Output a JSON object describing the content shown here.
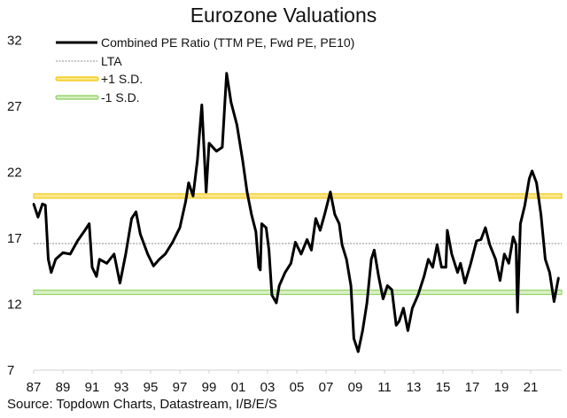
{
  "chart_data": {
    "type": "line",
    "title": "Eurozone Valuations",
    "source": "Source: Topdown Charts, Datastream, I/B/E/S",
    "xlabel": "",
    "ylabel": "",
    "xlim": [
      1987,
      2023
    ],
    "ylim": [
      7,
      32
    ],
    "y_ticks": [
      "32",
      "27",
      "22",
      "17",
      "12",
      "7"
    ],
    "y_tick_values": [
      32,
      27,
      22,
      17,
      12,
      7
    ],
    "x_ticks": [
      "87",
      "89",
      "91",
      "93",
      "95",
      "97",
      "99",
      "01",
      "03",
      "05",
      "07",
      "09",
      "11",
      "13",
      "15",
      "17",
      "19",
      "21"
    ],
    "grid": false,
    "legend_placement": "top-left",
    "legend": [
      "Combined PE Ratio (TTM PE, Fwd PE, PE10)",
      "LTA",
      "+1 S.D.",
      "-1 S.D."
    ],
    "colors": {
      "pe": "#000000",
      "lta": "#888888",
      "plus_sd": "#f2c500",
      "minus_sd": "#8ccf5a"
    },
    "series": [
      {
        "name": "Combined PE Ratio (TTM PE, Fwd PE, PE10)",
        "x": [
          1987.0,
          1987.3,
          1987.6,
          1987.8,
          1988.0,
          1988.2,
          1988.5,
          1989.0,
          1989.5,
          1990.0,
          1990.5,
          1990.8,
          1991.0,
          1991.3,
          1991.5,
          1992.0,
          1992.5,
          1992.9,
          1993.3,
          1993.7,
          1994.0,
          1994.3,
          1994.8,
          1995.2,
          1995.6,
          1996.0,
          1996.5,
          1997.0,
          1997.4,
          1997.6,
          1997.9,
          1998.2,
          1998.5,
          1998.8,
          1999.0,
          1999.5,
          1999.9,
          2000.1,
          2000.2,
          2000.5,
          2000.9,
          2001.3,
          2001.6,
          2001.9,
          2002.2,
          2002.4,
          2002.5,
          2002.6,
          2002.9,
          2003.1,
          2003.3,
          2003.6,
          2003.8,
          2004.2,
          2004.6,
          2004.9,
          2005.3,
          2005.7,
          2006.0,
          2006.3,
          2006.6,
          2006.9,
          2007.3,
          2007.6,
          2007.9,
          2008.1,
          2008.4,
          2008.7,
          2008.9,
          2009.2,
          2009.5,
          2009.8,
          2010.1,
          2010.3,
          2010.6,
          2010.9,
          2011.2,
          2011.5,
          2011.8,
          2012.0,
          2012.3,
          2012.6,
          2012.9,
          2013.3,
          2013.7,
          2014.0,
          2014.3,
          2014.6,
          2014.9,
          2015.2,
          2015.3,
          2015.6,
          2016.0,
          2016.2,
          2016.5,
          2016.9,
          2017.3,
          2017.6,
          2017.9,
          2018.2,
          2018.6,
          2018.9,
          2019.2,
          2019.5,
          2019.8,
          2020.0,
          2020.1,
          2020.3,
          2020.6,
          2020.9,
          2021.1,
          2021.4,
          2021.7,
          2022.0,
          2022.3,
          2022.6,
          2022.8,
          2022.9
        ],
        "y": [
          19.6,
          18.6,
          19.6,
          19.5,
          15.4,
          14.4,
          15.4,
          15.9,
          15.8,
          16.8,
          17.6,
          18.1,
          14.8,
          14.1,
          15.4,
          15.1,
          15.8,
          13.6,
          15.8,
          18.5,
          19.0,
          17.3,
          15.8,
          14.9,
          15.4,
          15.8,
          16.7,
          17.8,
          19.8,
          21.2,
          20.2,
          22.9,
          27.1,
          20.5,
          24.2,
          23.6,
          23.9,
          27.6,
          29.5,
          27.3,
          25.6,
          22.9,
          20.5,
          18.8,
          17.5,
          14.8,
          14.6,
          18.1,
          17.8,
          16.1,
          12.7,
          12.1,
          13.4,
          14.4,
          15.1,
          16.7,
          15.8,
          16.9,
          16.1,
          18.5,
          17.6,
          18.8,
          20.5,
          18.8,
          18.1,
          16.5,
          15.4,
          13.4,
          9.4,
          8.4,
          10.0,
          12.1,
          15.4,
          16.1,
          14.1,
          12.4,
          13.4,
          13.1,
          10.4,
          10.7,
          11.7,
          10.0,
          11.7,
          12.7,
          14.1,
          15.4,
          14.8,
          16.5,
          14.8,
          14.8,
          17.6,
          15.8,
          14.4,
          15.1,
          13.6,
          15.1,
          16.8,
          16.9,
          17.8,
          16.5,
          15.4,
          13.8,
          15.8,
          15.1,
          17.1,
          16.5,
          11.4,
          18.1,
          19.5,
          21.5,
          22.1,
          21.2,
          18.8,
          15.4,
          14.4,
          12.2,
          13.4,
          14.0
        ]
      },
      {
        "name": "LTA",
        "value": 16.6
      },
      {
        "name": "+1 S.D.",
        "value": 20.2
      },
      {
        "name": "-1 S.D.",
        "value": 12.9
      }
    ]
  }
}
